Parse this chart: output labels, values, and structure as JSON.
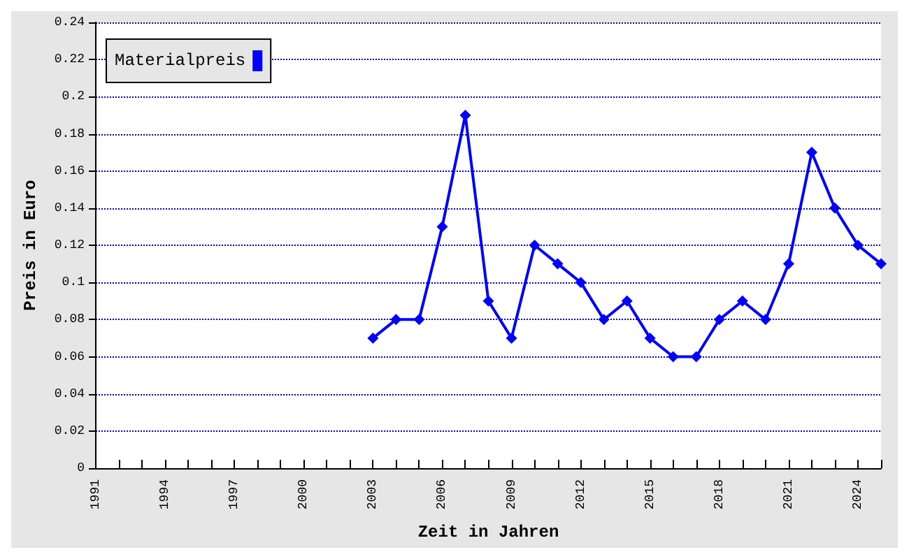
{
  "chart_data": {
    "type": "line",
    "xlabel": "Zeit in Jahren",
    "ylabel": "Preis in Euro",
    "x": [
      2003,
      2004,
      2005,
      2006,
      2007,
      2008,
      2009,
      2010,
      2011,
      2012,
      2013,
      2014,
      2015,
      2016,
      2017,
      2018,
      2019,
      2020,
      2021,
      2022,
      2023,
      2024,
      2025
    ],
    "series": [
      {
        "name": "Materialpreis",
        "color": "#0000ff",
        "values": [
          0.07,
          0.08,
          0.08,
          0.13,
          0.19,
          0.09,
          0.07,
          0.12,
          0.11,
          0.1,
          0.08,
          0.09,
          0.07,
          0.06,
          0.06,
          0.08,
          0.09,
          0.08,
          0.11,
          0.17,
          0.14,
          0.12,
          0.11
        ]
      }
    ],
    "xlim": [
      1991,
      2025
    ],
    "xticks": [
      1991,
      {
        "value": 1992,
        "label": null
      },
      {
        "value": 1993,
        "label": null
      },
      1994,
      {
        "value": 1995,
        "label": null
      },
      {
        "value": 1996,
        "label": null
      },
      1997,
      {
        "value": 1998,
        "label": null
      },
      {
        "value": 1999,
        "label": null
      },
      2000,
      {
        "value": 2001,
        "label": null
      },
      {
        "value": 2002,
        "label": null
      },
      2003,
      {
        "value": 2004,
        "label": null
      },
      {
        "value": 2005,
        "label": null
      },
      2006,
      {
        "value": 2007,
        "label": null
      },
      {
        "value": 2008,
        "label": null
      },
      2009,
      {
        "value": 2010,
        "label": null
      },
      {
        "value": 2011,
        "label": null
      },
      2012,
      {
        "value": 2013,
        "label": null
      },
      {
        "value": 2014,
        "label": null
      },
      2015,
      {
        "value": 2016,
        "label": null
      },
      {
        "value": 2017,
        "label": null
      },
      2018,
      {
        "value": 2019,
        "label": null
      },
      {
        "value": 2020,
        "label": null
      },
      2021,
      {
        "value": 2022,
        "label": null
      },
      {
        "value": 2023,
        "label": null
      },
      2024,
      {
        "value": 2025,
        "label": null
      }
    ],
    "ylim": [
      0,
      0.24
    ],
    "yticks": [
      0,
      0.02,
      0.04,
      0.06,
      0.08,
      0.1,
      0.12,
      0.14,
      0.16,
      0.18,
      0.2,
      0.22,
      0.24
    ],
    "grid": "y",
    "legend": "top left",
    "marker": "diamond",
    "line_style": "solid"
  }
}
